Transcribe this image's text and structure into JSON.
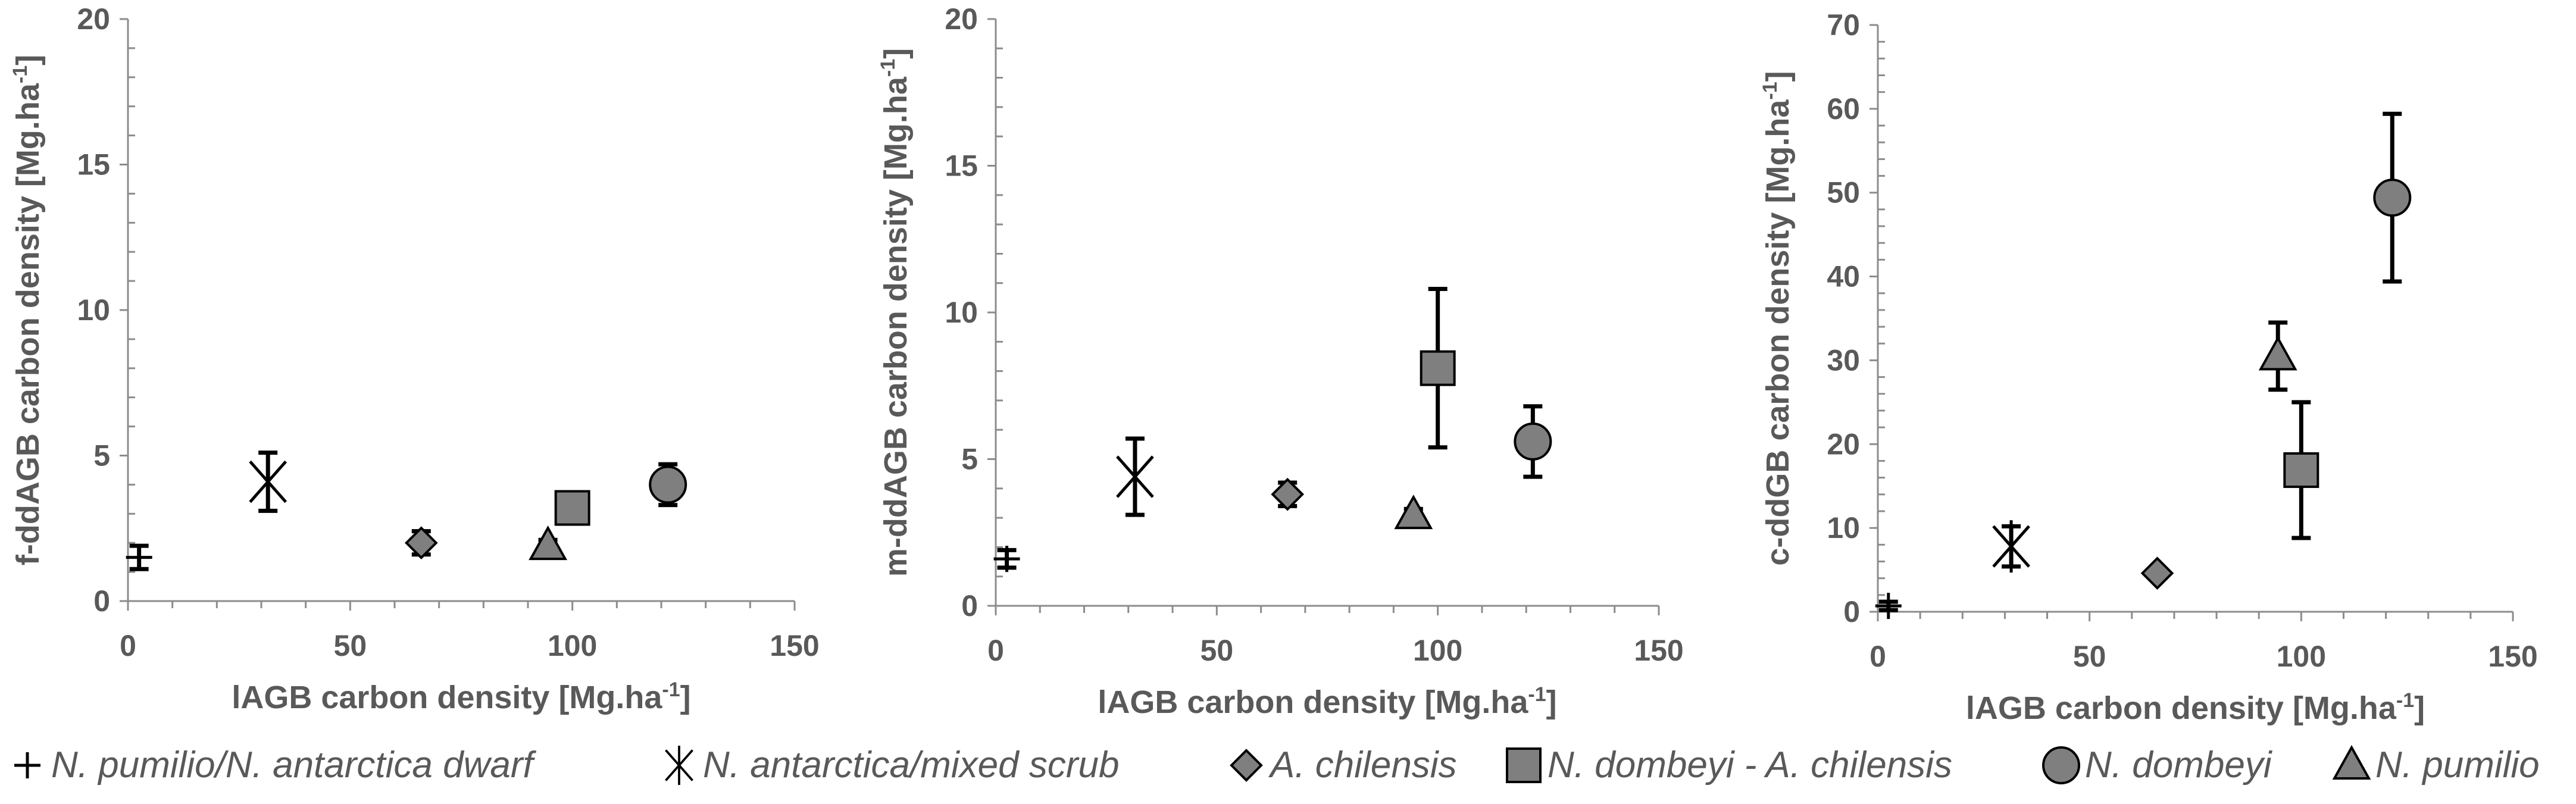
{
  "chart_data": [
    {
      "type": "scatter",
      "xlabel": "lAGB carbon density [Mg.ha",
      "xlabel_sup": "-1",
      "xlabel_end": "]",
      "ylabel": "f-ddAGB carbon density [Mg.ha",
      "ylabel_sup": "-1",
      "ylabel_end": "]",
      "xlim": [
        0,
        150
      ],
      "ylim": [
        0,
        20
      ],
      "xticks": [
        "0",
        "50",
        "100",
        "150"
      ],
      "yticks": [
        "0",
        "5",
        "10",
        "15",
        "20"
      ],
      "grid": false,
      "series": [
        {
          "name": "N. pumilio/N. antarctica dwarf",
          "marker": "plus",
          "x": 2.5,
          "y": 1.5,
          "err": 0.4
        },
        {
          "name": "N. antarctica/mixed scrub",
          "marker": "asterisk",
          "x": 31.5,
          "y": 4.1,
          "err": 1.0
        },
        {
          "name": "A. chilensis",
          "marker": "diamond",
          "x": 66,
          "y": 2.0,
          "err": 0.4
        },
        {
          "name": "N. dombeyi - A. chilensis",
          "marker": "square",
          "x": 100,
          "y": 3.2,
          "err": 0.2
        },
        {
          "name": "N. dombeyi",
          "marker": "circle",
          "x": 121.5,
          "y": 4.0,
          "err": 0.7
        },
        {
          "name": "N. pumilio",
          "marker": "triangle",
          "x": 94.5,
          "y": 1.9,
          "err": 0.2
        }
      ]
    },
    {
      "type": "scatter",
      "xlabel": "lAGB carbon density [Mg.ha",
      "xlabel_sup": "-1",
      "xlabel_end": "]",
      "ylabel": "m-ddAGB carbon density [Mg.ha",
      "ylabel_sup": "-1",
      "ylabel_end": "]",
      "xlim": [
        0,
        150
      ],
      "ylim": [
        0,
        20
      ],
      "xticks": [
        "0",
        "50",
        "100",
        "150"
      ],
      "yticks": [
        "0",
        "5",
        "10",
        "15",
        "20"
      ],
      "grid": false,
      "series": [
        {
          "name": "N. pumilio/N. antarctica dwarf",
          "marker": "plus",
          "x": 2.5,
          "y": 1.6,
          "err": 0.3
        },
        {
          "name": "N. antarctica/mixed scrub",
          "marker": "asterisk",
          "x": 31.5,
          "y": 4.4,
          "err": 1.3
        },
        {
          "name": "A. chilensis",
          "marker": "diamond",
          "x": 66,
          "y": 3.8,
          "err": 0.4
        },
        {
          "name": "N. dombeyi - A. chilensis",
          "marker": "square",
          "x": 100,
          "y": 8.1,
          "err": 2.7
        },
        {
          "name": "N. dombeyi",
          "marker": "circle",
          "x": 121.5,
          "y": 5.6,
          "err": 1.2
        },
        {
          "name": "N. pumilio",
          "marker": "triangle",
          "x": 94.5,
          "y": 3.1,
          "err": 0.2
        }
      ]
    },
    {
      "type": "scatter",
      "xlabel": "lAGB carbon density [Mg.ha",
      "xlabel_sup": "-1",
      "xlabel_end": "]",
      "ylabel": "c-ddGB carbon density [Mg.ha",
      "ylabel_sup": "-1",
      "ylabel_end": "]",
      "xlim": [
        0,
        150
      ],
      "ylim": [
        0,
        70
      ],
      "xticks": [
        "0",
        "50",
        "100",
        "150"
      ],
      "yticks": [
        "0",
        "10",
        "20",
        "30",
        "40",
        "50",
        "60",
        "70"
      ],
      "grid": false,
      "series": [
        {
          "name": "N. pumilio/N. antarctica dwarf",
          "marker": "plus",
          "x": 2.5,
          "y": 0.7,
          "err": 0.5
        },
        {
          "name": "N. antarctica/mixed scrub",
          "marker": "asterisk",
          "x": 31.5,
          "y": 7.8,
          "err": 2.4
        },
        {
          "name": "A. chilensis",
          "marker": "diamond",
          "x": 66,
          "y": 4.6,
          "err": 0.3
        },
        {
          "name": "N. dombeyi - A. chilensis",
          "marker": "square",
          "x": 100,
          "y": 16.9,
          "err": 8.1
        },
        {
          "name": "N. dombeyi",
          "marker": "circle",
          "x": 121.5,
          "y": 49.4,
          "err": 10.0
        },
        {
          "name": "N. pumilio",
          "marker": "triangle",
          "x": 94.5,
          "y": 30.5,
          "err": 4.0
        }
      ]
    }
  ],
  "legend": {
    "placement": "bottom",
    "items": [
      {
        "marker": "plus",
        "label": "N. pumilio/N. antarctica dwarf"
      },
      {
        "marker": "asterisk",
        "label": "N. antarctica/mixed scrub"
      },
      {
        "marker": "diamond",
        "label": "A. chilensis"
      },
      {
        "marker": "square",
        "label": "N. dombeyi - A. chilensis"
      },
      {
        "marker": "circle",
        "label": "N. dombeyi"
      },
      {
        "marker": "triangle",
        "label": "N. pumilio"
      }
    ]
  },
  "colors": {
    "marker_fill": "#7f7f7f",
    "axis": "#8c8c8c",
    "text": "#595959"
  }
}
